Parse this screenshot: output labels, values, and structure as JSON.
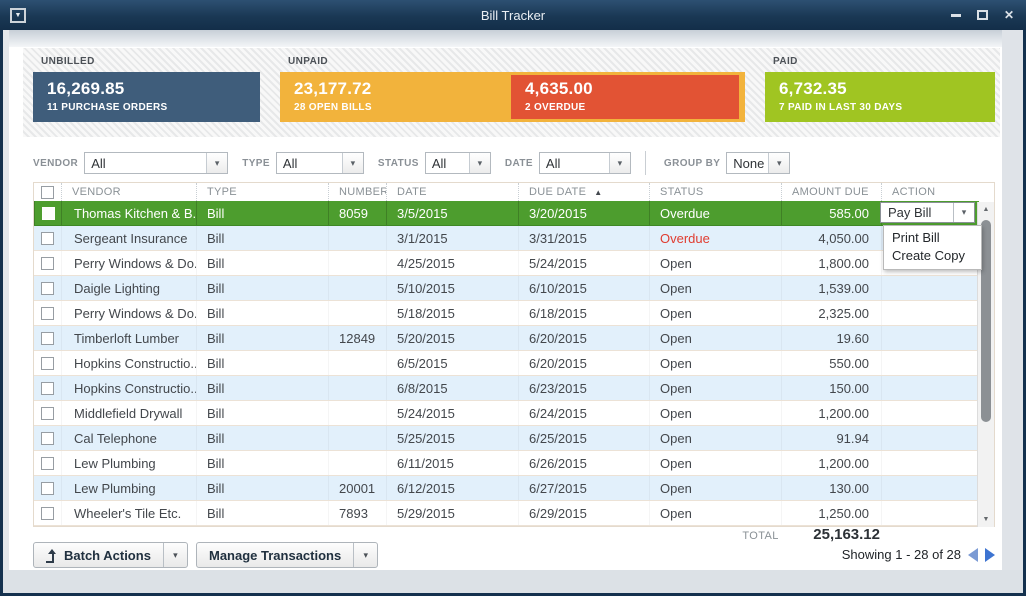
{
  "window": {
    "title": "Bill Tracker"
  },
  "icons": {
    "window_menu": "▼",
    "close": "✕",
    "dropdown": "▾",
    "sort_asc": "▲",
    "scroll_up": "▲",
    "scroll_down": "▼"
  },
  "colors": {
    "titlebar": "#1a3854",
    "unbilled_tile": "#3f5d7b",
    "unpaid_tile": "#f2b33c",
    "overdue_tile": "#e25334",
    "paid_tile": "#a0c522",
    "selected_row": "#4d9d2e",
    "alt_row": "#e2f0fb",
    "overdue_text": "#e03c30",
    "pager_arrow": "#3d74d1"
  },
  "summary": {
    "unbilled": {
      "label": "UNBILLED",
      "amount": "16,269.85",
      "caption": "11 PURCHASE ORDERS"
    },
    "unpaid": {
      "label": "UNPAID",
      "open_amount": "23,177.72",
      "open_caption": "28 OPEN BILLS",
      "overdue_amount": "4,635.00",
      "overdue_caption": "2 OVERDUE"
    },
    "paid": {
      "label": "PAID",
      "amount": "6,732.35",
      "caption": "7 PAID IN LAST 30 DAYS"
    }
  },
  "filters": {
    "vendor": {
      "label": "VENDOR",
      "value": "All"
    },
    "type": {
      "label": "TYPE",
      "value": "All"
    },
    "status": {
      "label": "STATUS",
      "value": "All"
    },
    "date": {
      "label": "DATE",
      "value": "All"
    },
    "group_by": {
      "label": "GROUP BY",
      "value": "None"
    }
  },
  "table": {
    "columns": [
      "VENDOR",
      "TYPE",
      "NUMBER",
      "DATE",
      "DUE DATE",
      "STATUS",
      "AMOUNT DUE",
      "ACTION"
    ],
    "sort": {
      "column": "DUE DATE",
      "direction": "asc"
    },
    "rows": [
      {
        "css": "row sel",
        "vendor": "Thomas Kitchen & B...",
        "type": "Bill",
        "number": "8059",
        "date": "3/5/2015",
        "due": "3/20/2015",
        "status": "Overdue",
        "status_css": "cell st",
        "amount": "585.00"
      },
      {
        "css": "row alt",
        "vendor": "Sergeant Insurance",
        "type": "Bill",
        "number": "",
        "date": "3/1/2015",
        "due": "3/31/2015",
        "status": "Overdue",
        "status_css": "cell st red",
        "amount": "4,050.00"
      },
      {
        "css": "row",
        "vendor": "Perry Windows & Do...",
        "type": "Bill",
        "number": "",
        "date": "4/25/2015",
        "due": "5/24/2015",
        "status": "Open",
        "status_css": "cell st",
        "amount": "1,800.00"
      },
      {
        "css": "row alt",
        "vendor": "Daigle Lighting",
        "type": "Bill",
        "number": "",
        "date": "5/10/2015",
        "due": "6/10/2015",
        "status": "Open",
        "status_css": "cell st",
        "amount": "1,539.00"
      },
      {
        "css": "row",
        "vendor": "Perry Windows & Do...",
        "type": "Bill",
        "number": "",
        "date": "5/18/2015",
        "due": "6/18/2015",
        "status": "Open",
        "status_css": "cell st",
        "amount": "2,325.00"
      },
      {
        "css": "row alt",
        "vendor": "Timberloft Lumber",
        "type": "Bill",
        "number": "12849",
        "date": "5/20/2015",
        "due": "6/20/2015",
        "status": "Open",
        "status_css": "cell st",
        "amount": "19.60"
      },
      {
        "css": "row",
        "vendor": "Hopkins Constructio...",
        "type": "Bill",
        "number": "",
        "date": "6/5/2015",
        "due": "6/20/2015",
        "status": "Open",
        "status_css": "cell st",
        "amount": "550.00"
      },
      {
        "css": "row alt",
        "vendor": "Hopkins Constructio...",
        "type": "Bill",
        "number": "",
        "date": "6/8/2015",
        "due": "6/23/2015",
        "status": "Open",
        "status_css": "cell st",
        "amount": "150.00"
      },
      {
        "css": "row",
        "vendor": "Middlefield Drywall",
        "type": "Bill",
        "number": "",
        "date": "5/24/2015",
        "due": "6/24/2015",
        "status": "Open",
        "status_css": "cell st",
        "amount": "1,200.00"
      },
      {
        "css": "row alt",
        "vendor": "Cal Telephone",
        "type": "Bill",
        "number": "",
        "date": "5/25/2015",
        "due": "6/25/2015",
        "status": "Open",
        "status_css": "cell st",
        "amount": "91.94"
      },
      {
        "css": "row",
        "vendor": "Lew Plumbing",
        "type": "Bill",
        "number": "",
        "date": "6/11/2015",
        "due": "6/26/2015",
        "status": "Open",
        "status_css": "cell st",
        "amount": "1,200.00"
      },
      {
        "css": "row alt",
        "vendor": "Lew Plumbing",
        "type": "Bill",
        "number": "20001",
        "date": "6/12/2015",
        "due": "6/27/2015",
        "status": "Open",
        "status_css": "cell st",
        "amount": "130.00"
      },
      {
        "css": "row",
        "vendor": "Wheeler's Tile Etc.",
        "type": "Bill",
        "number": "7893",
        "date": "5/29/2015",
        "due": "6/29/2015",
        "status": "Open",
        "status_css": "cell st",
        "amount": "1,250.00"
      }
    ]
  },
  "action_menu": {
    "button_label": "Pay Bill",
    "items": [
      "Print Bill",
      "Create Copy"
    ]
  },
  "footer": {
    "total_label": "TOTAL",
    "total_amount": "25,163.12",
    "batch_actions_label": "Batch Actions",
    "manage_transactions_label": "Manage Transactions",
    "showing": "Showing  1  -  28  of  28"
  }
}
